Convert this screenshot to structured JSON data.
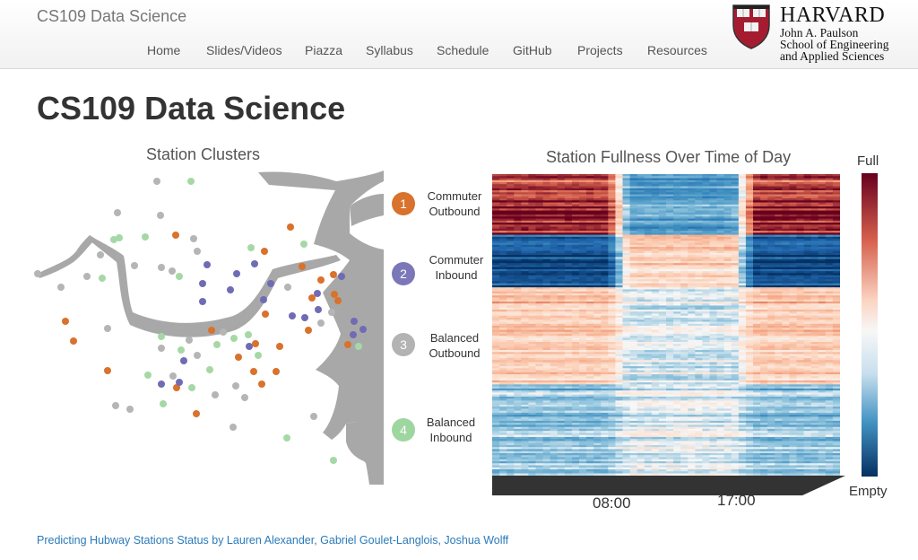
{
  "header": {
    "brand": "CS109 Data Science",
    "nav": [
      "Home",
      "Slides/Videos",
      "Piazza",
      "Syllabus",
      "Schedule",
      "GitHub",
      "Projects",
      "Resources"
    ],
    "logo": {
      "word": "HARVARD",
      "line1": "John A. Paulson",
      "line2": "School of Engineering",
      "line3": "and Applied Sciences",
      "shield_text": "VERITAS"
    }
  },
  "page": {
    "title": "CS109 Data Science"
  },
  "map": {
    "title": "Station Clusters"
  },
  "heatmap": {
    "title": "Station Fullness Over Time of Day",
    "scale_high": "Full",
    "scale_low": "Empty",
    "time_labels": [
      "08:00",
      "17:00"
    ]
  },
  "clusters": [
    {
      "number": "1",
      "line1": "Commuter",
      "line2": "Outbound",
      "color": "#d9722c"
    },
    {
      "number": "2",
      "line1": "Commuter",
      "line2": "Inbound",
      "color": "#7b77b8"
    },
    {
      "number": "3",
      "line1": "Balanced",
      "line2": "Outbound",
      "color": "#b3b3b3"
    },
    {
      "number": "4",
      "line1": "Balanced",
      "line2": "Inbound",
      "color": "#9ed6a0"
    }
  ],
  "colors": {
    "orange": "#d9722c",
    "purple": "#6f6cb5",
    "gray": "#b5b5b5",
    "green": "#a5d8a5",
    "land": "#a8a8a8",
    "link": "#2a7ab9"
  },
  "footer": {
    "credit": "Predicting Hubway Stations Status by Lauren Alexander, Gabriel Goulet-Langlois, Joshua Wolff"
  }
}
